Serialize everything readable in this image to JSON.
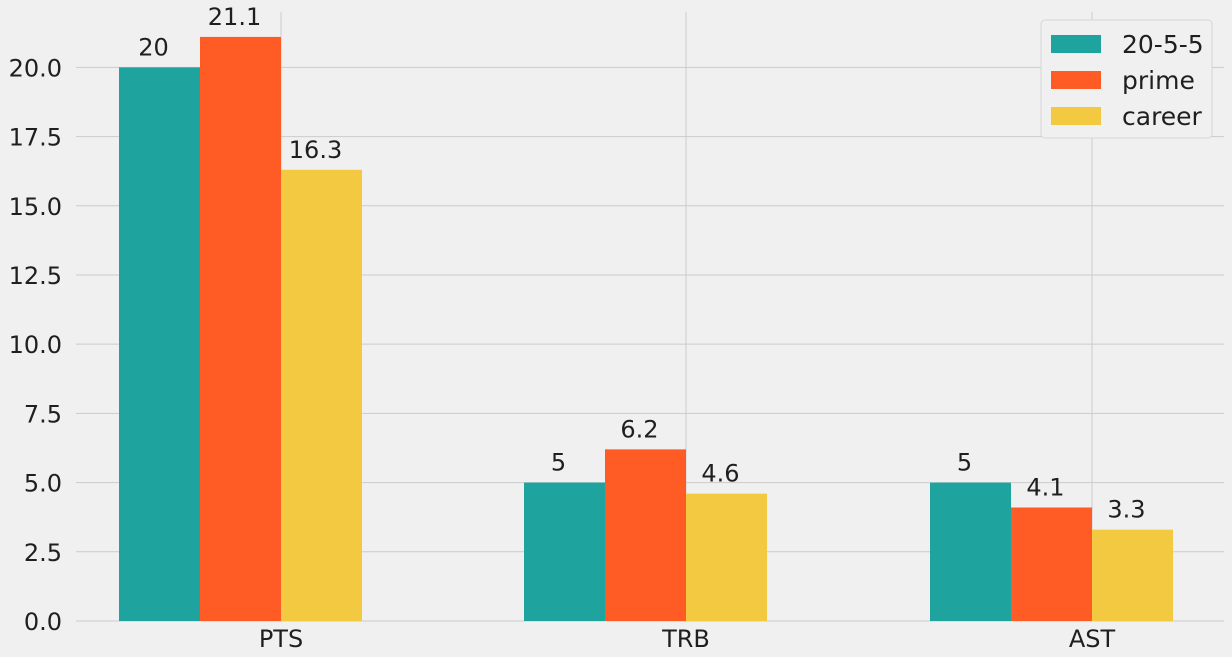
{
  "chart_data": {
    "type": "bar",
    "categories": [
      "PTS",
      "TRB",
      "AST"
    ],
    "series": [
      {
        "name": "20-5-5",
        "values": [
          20,
          5,
          5
        ],
        "labels": [
          "20",
          "5",
          "5"
        ],
        "color": "#1fa39f"
      },
      {
        "name": "prime",
        "values": [
          21.1,
          6.2,
          4.1
        ],
        "labels": [
          "21.1",
          "6.2",
          "4.1"
        ],
        "color": "#fe5b25"
      },
      {
        "name": "career",
        "values": [
          16.3,
          4.6,
          3.3
        ],
        "labels": [
          "16.3",
          "4.6",
          "3.3"
        ],
        "color": "#f4c942"
      }
    ],
    "ylim": [
      0,
      22
    ],
    "yticks": [
      "0.0",
      "2.5",
      "5.0",
      "7.5",
      "10.0",
      "12.5",
      "15.0",
      "17.5",
      "20.0"
    ],
    "ytick_values": [
      0,
      2.5,
      5,
      7.5,
      10,
      12.5,
      15,
      17.5,
      20
    ],
    "title": "",
    "xlabel": "",
    "ylabel": "",
    "grid": true,
    "legend": "top-right",
    "background": "#f0f0f0"
  }
}
